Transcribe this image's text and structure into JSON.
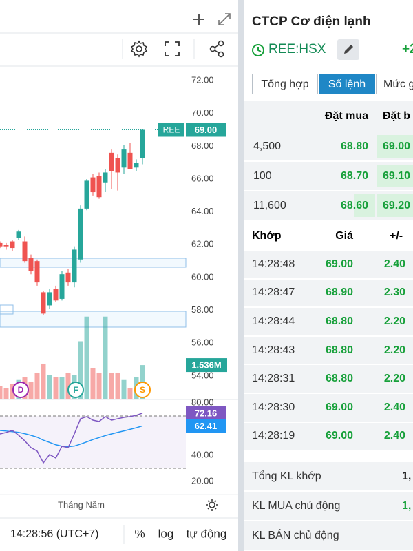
{
  "chart": {
    "type": "candlestick",
    "symbol_tag": "REE",
    "ylim": [
      52.57,
      72.84
    ],
    "yticks": [
      {
        "value": 54,
        "label": "54.00"
      },
      {
        "value": 56,
        "label": "56.00"
      },
      {
        "value": 58,
        "label": "58.00"
      },
      {
        "value": 60,
        "label": "60.00"
      },
      {
        "value": 62,
        "label": "62.00"
      },
      {
        "value": 64,
        "label": "64.00"
      },
      {
        "value": 66,
        "label": "66.00"
      },
      {
        "value": 68,
        "label": "68.00"
      },
      {
        "value": 70,
        "label": "70.00"
      },
      {
        "value": 72,
        "label": "72.00"
      }
    ],
    "candles": {
      "open": [
        62.1,
        62.0,
        62.2,
        62.4,
        62.2,
        61.2,
        61.0,
        59.1,
        58.3,
        59.3,
        58.7,
        60.3,
        59.7,
        61.1,
        64.2,
        66.1,
        66.2,
        65.8,
        67.6,
        67.3,
        66.7,
        67.6,
        66.7,
        67.3
      ],
      "high": [
        62.2,
        62.1,
        62.3,
        62.9,
        62.5,
        61.4,
        61.1,
        59.2,
        59.3,
        59.5,
        60.4,
        60.5,
        61.9,
        64.4,
        66.0,
        66.3,
        66.4,
        66.6,
        67.8,
        67.5,
        68.1,
        68.2,
        67.2,
        69.0
      ],
      "low": [
        61.8,
        61.7,
        61.6,
        62.3,
        60.9,
        60.2,
        59.5,
        57.7,
        58.1,
        58.5,
        58.6,
        59.5,
        59.4,
        60.9,
        64.1,
        65.0,
        64.8,
        65.2,
        65.4,
        65.3,
        66.3,
        66.6,
        66.5,
        66.9
      ],
      "close": [
        61.9,
        61.9,
        61.8,
        62.8,
        61.0,
        60.4,
        59.7,
        57.8,
        59.1,
        58.6,
        60.2,
        59.7,
        61.7,
        64.2,
        65.9,
        65.2,
        64.9,
        66.4,
        66.5,
        66.4,
        67.8,
        66.6,
        67.0,
        69.0
      ],
      "up_color": "#26a69a",
      "down_color": "#ef5350"
    },
    "last_close_label": "69.00",
    "volume": {
      "values": [
        0.6,
        0.5,
        0.7,
        0.9,
        1.0,
        0.8,
        1.2,
        1.6,
        1.1,
        1.0,
        1.0,
        1.2,
        1.1,
        2.6,
        3.7,
        1.4,
        1.2,
        3.7,
        1.2,
        1.2,
        0.9,
        0.5,
        1.0,
        1.536
      ],
      "ylim": [
        0,
        14.86
      ],
      "last_label": "1.536M"
    },
    "events": [
      "D",
      "F",
      "S"
    ],
    "rsi": {
      "ylim": [
        10,
        82.6
      ],
      "yticks": [
        {
          "value": 20,
          "label": "20.00"
        },
        {
          "value": 40,
          "label": "40.00"
        },
        {
          "value": 80,
          "label": "80.00"
        }
      ],
      "bands": [
        30,
        70
      ],
      "values": [
        56.3,
        57.4,
        59,
        55.3,
        51,
        45.8,
        43.2,
        34.2,
        40.5,
        37.9,
        46.8,
        45.8,
        56.3,
        67.9,
        69.5,
        66.8,
        65.8,
        69.5,
        66.8,
        67.9,
        68.9,
        69.5,
        70.5,
        72.16
      ],
      "ma": [
        58.9,
        58.5,
        58.0,
        57.5,
        56.5,
        55.2,
        53.8,
        51.5,
        49.8,
        48.0,
        46.9,
        46.5,
        47.0,
        48.5,
        50.2,
        52.0,
        53.5,
        55.0,
        56.3,
        57.5,
        58.6,
        59.8,
        61.0,
        62.41
      ],
      "color": "#7e57c2",
      "ma_color": "#2196f3"
    },
    "x_label": "Tháng Năm"
  },
  "footer": {
    "time": "14:28:56 (UTC+7)",
    "percent": "%",
    "log": "log",
    "auto": "tự động"
  },
  "quote": {
    "title": "CTCP Cơ điện lạnh",
    "symbol": "REE:HSX",
    "change": "+2",
    "tabs": [
      "Tổng hợp",
      "Sổ lệnh",
      "Mức g"
    ]
  },
  "order_book": {
    "headers": [
      "Đặt mua",
      "Đặt b"
    ],
    "rows": [
      [
        "4,500",
        "68.80",
        "69.00"
      ],
      [
        "100",
        "68.70",
        "69.10"
      ],
      [
        "11,600",
        "68.60",
        "69.20"
      ]
    ]
  },
  "trades": {
    "headers": [
      "Khớp",
      "Giá",
      "+/-"
    ],
    "rows": [
      [
        "14:28:48",
        "69.00",
        "2.40"
      ],
      [
        "14:28:47",
        "68.90",
        "2.30"
      ],
      [
        "14:28:44",
        "68.80",
        "2.20"
      ],
      [
        "14:28:43",
        "68.80",
        "2.20"
      ],
      [
        "14:28:31",
        "68.80",
        "2.20"
      ],
      [
        "14:28:30",
        "69.00",
        "2.40"
      ],
      [
        "14:28:19",
        "69.00",
        "2.40"
      ]
    ]
  },
  "summary": [
    {
      "label": "Tổng KL khớp",
      "value": "1,"
    },
    {
      "label": "KL MUA chủ động",
      "value": "1,"
    },
    {
      "label": "KL BÁN chủ động"
    }
  ]
}
